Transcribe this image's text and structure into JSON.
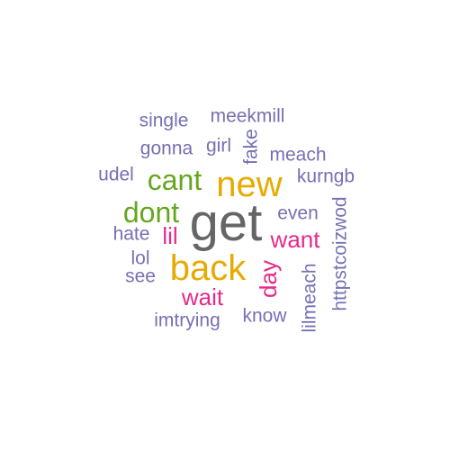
{
  "colors": {
    "purple": "#7570b3",
    "green": "#66a61e",
    "gold": "#e6ab02",
    "gray": "#666666",
    "pink": "#e7298a"
  },
  "words": [
    {
      "text": "get",
      "color": "gray"
    },
    {
      "text": "new",
      "color": "gold"
    },
    {
      "text": "back",
      "color": "gold"
    },
    {
      "text": "cant",
      "color": "green"
    },
    {
      "text": "dont",
      "color": "green"
    },
    {
      "text": "want",
      "color": "pink"
    },
    {
      "text": "wait",
      "color": "pink"
    },
    {
      "text": "lil",
      "color": "pink"
    },
    {
      "text": "day",
      "color": "pink"
    },
    {
      "text": "single",
      "color": "purple"
    },
    {
      "text": "meekmill",
      "color": "purple"
    },
    {
      "text": "gonna",
      "color": "purple"
    },
    {
      "text": "girl",
      "color": "purple"
    },
    {
      "text": "fake",
      "color": "purple"
    },
    {
      "text": "meach",
      "color": "purple"
    },
    {
      "text": "udel",
      "color": "purple"
    },
    {
      "text": "kurngb",
      "color": "purple"
    },
    {
      "text": "even",
      "color": "purple"
    },
    {
      "text": "hate",
      "color": "purple"
    },
    {
      "text": "lol",
      "color": "purple"
    },
    {
      "text": "see",
      "color": "purple"
    },
    {
      "text": "imtrying",
      "color": "purple"
    },
    {
      "text": "know",
      "color": "purple"
    },
    {
      "text": "lilmeach",
      "color": "purple"
    },
    {
      "text": "httpstcoizwod",
      "color": "purple"
    }
  ]
}
